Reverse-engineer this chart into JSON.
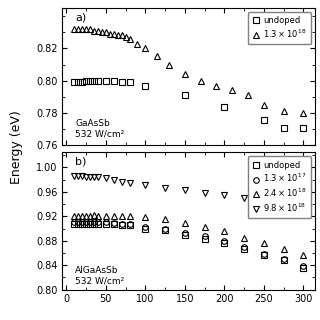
{
  "ylabel": "Energy (eV)",
  "panel_a": {
    "label": "a)",
    "annotation": "GaAsSb\n532 W/cm²",
    "ylim": [
      0.76,
      0.845
    ],
    "yticks": [
      0.76,
      0.78,
      0.8,
      0.82
    ],
    "series": [
      {
        "marker": "s",
        "x": [
          10,
          15,
          20,
          25,
          30,
          35,
          40,
          50,
          60,
          70,
          80,
          100,
          150,
          200,
          250,
          275,
          300
        ],
        "y": [
          0.799,
          0.799,
          0.799,
          0.8,
          0.8,
          0.8,
          0.8,
          0.8,
          0.8,
          0.799,
          0.799,
          0.797,
          0.791,
          0.784,
          0.776,
          0.771,
          0.771
        ]
      },
      {
        "marker": "^",
        "x": [
          10,
          15,
          20,
          25,
          30,
          35,
          40,
          45,
          50,
          55,
          60,
          65,
          70,
          75,
          80,
          90,
          100,
          115,
          130,
          150,
          170,
          190,
          210,
          230,
          250,
          275,
          300
        ],
        "y": [
          0.832,
          0.832,
          0.832,
          0.832,
          0.832,
          0.831,
          0.831,
          0.83,
          0.83,
          0.829,
          0.829,
          0.828,
          0.828,
          0.827,
          0.826,
          0.823,
          0.82,
          0.815,
          0.81,
          0.804,
          0.8,
          0.797,
          0.794,
          0.791,
          0.785,
          0.781,
          0.78
        ]
      }
    ],
    "legend_labels": [
      "undoped",
      "$1.3\\times10^{18}$"
    ]
  },
  "panel_b": {
    "label": "b)",
    "annotation": "AlGaAsSb\n532 W/cm²",
    "ylim": [
      0.8,
      1.025
    ],
    "yticks": [
      0.8,
      0.84,
      0.88,
      0.92,
      0.96,
      1.0
    ],
    "series": [
      {
        "marker": "s",
        "x": [
          10,
          15,
          20,
          25,
          30,
          35,
          40,
          50,
          60,
          70,
          80,
          100,
          125,
          150,
          175,
          200,
          225,
          250,
          275,
          300
        ],
        "y": [
          0.907,
          0.907,
          0.907,
          0.908,
          0.908,
          0.907,
          0.907,
          0.907,
          0.907,
          0.906,
          0.905,
          0.9,
          0.897,
          0.89,
          0.883,
          0.876,
          0.867,
          0.857,
          0.848,
          0.836
        ]
      },
      {
        "marker": "o",
        "x": [
          10,
          15,
          20,
          25,
          30,
          35,
          40,
          50,
          60,
          70,
          80,
          100,
          125,
          150,
          175,
          200,
          225,
          250,
          275,
          300
        ],
        "y": [
          0.91,
          0.91,
          0.91,
          0.91,
          0.91,
          0.91,
          0.91,
          0.91,
          0.909,
          0.908,
          0.907,
          0.903,
          0.9,
          0.893,
          0.887,
          0.88,
          0.87,
          0.859,
          0.85,
          0.838
        ]
      },
      {
        "marker": "^",
        "x": [
          10,
          15,
          20,
          25,
          30,
          35,
          40,
          50,
          60,
          70,
          80,
          100,
          125,
          150,
          175,
          200,
          225,
          250,
          275,
          300
        ],
        "y": [
          0.921,
          0.921,
          0.921,
          0.921,
          0.921,
          0.922,
          0.921,
          0.921,
          0.921,
          0.921,
          0.92,
          0.919,
          0.915,
          0.909,
          0.903,
          0.896,
          0.885,
          0.876,
          0.866,
          0.856
        ]
      },
      {
        "marker": "v",
        "x": [
          10,
          15,
          20,
          25,
          30,
          35,
          40,
          50,
          60,
          70,
          80,
          100,
          125,
          150,
          175,
          200,
          225,
          250,
          275,
          300
        ],
        "y": [
          0.986,
          0.986,
          0.986,
          0.985,
          0.985,
          0.984,
          0.984,
          0.982,
          0.98,
          0.977,
          0.975,
          0.972,
          0.967,
          0.963,
          0.959,
          0.955,
          0.95,
          0.943,
          0.937,
          0.929
        ]
      }
    ],
    "legend_labels": [
      "undoped",
      "$1.3\\times10^{17}$",
      "$2.4\\times10^{18}$",
      "$9.8\\times10^{18}$"
    ]
  },
  "xlim": [
    -5,
    315
  ],
  "xticks": [
    0,
    50,
    100,
    150,
    200,
    250,
    300
  ],
  "markersize": 4.0,
  "markeredgewidth": 0.8
}
